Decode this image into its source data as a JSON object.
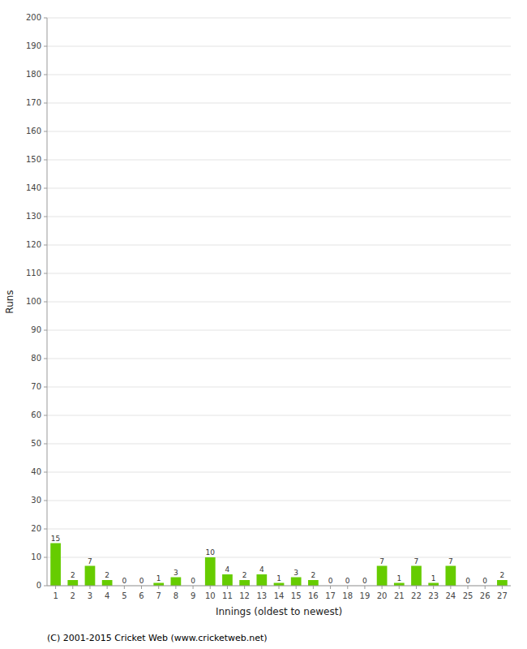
{
  "chart_data": {
    "type": "bar",
    "xlabel": "Innings (oldest to newest)",
    "ylabel": "Runs",
    "categories": [
      1,
      2,
      3,
      4,
      5,
      6,
      7,
      8,
      9,
      10,
      11,
      12,
      13,
      14,
      15,
      16,
      17,
      18,
      19,
      20,
      21,
      22,
      23,
      24,
      25,
      26,
      27
    ],
    "values": [
      15,
      2,
      7,
      2,
      0,
      0,
      1,
      3,
      0,
      10,
      4,
      2,
      4,
      1,
      3,
      2,
      0,
      0,
      0,
      7,
      1,
      7,
      1,
      7,
      0,
      0,
      2
    ],
    "color": "#66cc00",
    "ylim": [
      0,
      200
    ],
    "yticks": [
      0,
      10,
      20,
      30,
      40,
      50,
      60,
      70,
      80,
      90,
      100,
      110,
      120,
      130,
      140,
      150,
      160,
      170,
      180,
      190,
      200
    ],
    "grid": true,
    "data_labels": true,
    "footer": "(C) 2001-2015 Cricket Web (www.cricketweb.net)"
  }
}
